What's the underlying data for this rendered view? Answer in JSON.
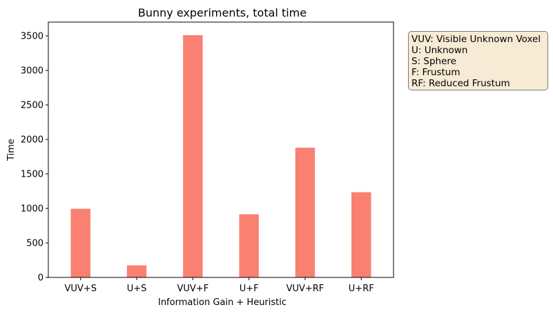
{
  "chart_data": {
    "type": "bar",
    "title": "Bunny experiments, total time",
    "xlabel": "Information Gain + Heuristic",
    "ylabel": "Time",
    "categories": [
      "VUV+S",
      "U+S",
      "VUV+F",
      "U+F",
      "VUV+RF",
      "U+RF"
    ],
    "values": [
      995,
      175,
      3510,
      915,
      1880,
      1235
    ],
    "ylim": [
      0,
      3700
    ],
    "yticks": [
      0,
      500,
      1000,
      1500,
      2000,
      2500,
      3000,
      3500
    ],
    "bar_color": "#fa8072",
    "grid": false,
    "annotation_box": {
      "lines": [
        "VUV: Visible Unknown Voxel",
        "U: Unknown",
        "S: Sphere",
        "F: Frustum",
        "RF: Reduced Frustum"
      ],
      "placement": "right, outside plot",
      "background": "#f7ebd6"
    }
  }
}
